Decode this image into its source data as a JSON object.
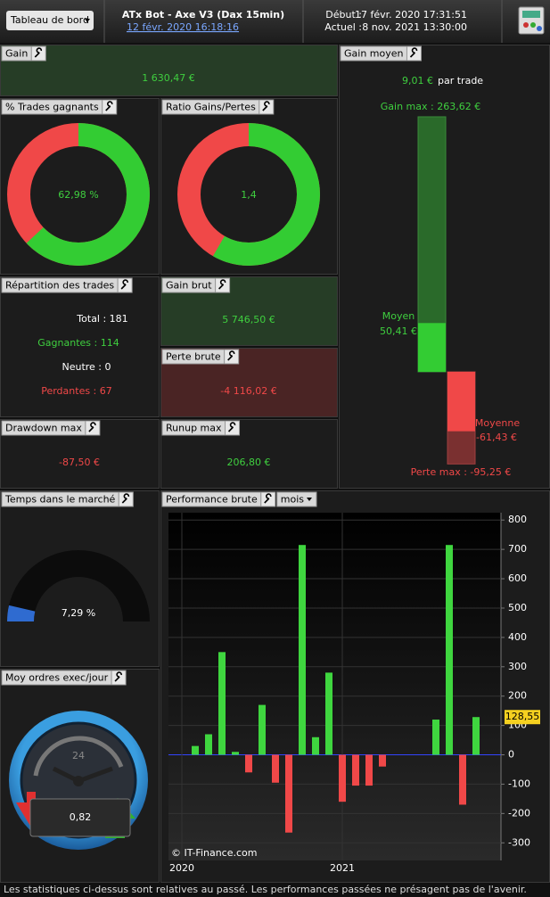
{
  "header": {
    "menu": "Tableau de bord",
    "title": "ATx Bot - Axe V3 (Dax 15min)",
    "date_link": "12 févr. 2020 16:18:16",
    "start_label": "Début :",
    "start": "17 févr. 2020 17:31:51",
    "current_label": "Actuel :",
    "current": "8 nov. 2021 13:30:00"
  },
  "gain": {
    "title": "Gain",
    "value": "1 630,47 €"
  },
  "win_rate": {
    "title": "% Trades gagnants",
    "value": 62.98,
    "label": "62,98 %"
  },
  "ratio": {
    "title": "Ratio Gains/Pertes",
    "value": 1.4,
    "label": "1,4"
  },
  "gain_moyen": {
    "title": "Gain moyen",
    "value": "9,01 €",
    "unit": "par trade",
    "gain_max": {
      "value": 263.62,
      "label": "Gain max : 263,62 €"
    },
    "moyen": {
      "name": "Moyen",
      "value": 50.41,
      "label": "50,41 €"
    },
    "moyenne": {
      "name": "Moyenne",
      "value": -61.43,
      "label": "-61,43 €"
    },
    "perte_max": {
      "value": -95.25,
      "label": "Perte max : -95,25 €"
    }
  },
  "repartition": {
    "title": "Répartition des trades",
    "lines": [
      "Total : 181",
      "Gagnantes : 114",
      "Neutre : 0",
      "Perdantes : 67"
    ]
  },
  "gain_brut": {
    "title": "Gain brut",
    "value": "5 746,50 €"
  },
  "perte_brute": {
    "title": "Perte brute",
    "value": "-4 116,02 €"
  },
  "drawdown": {
    "title": "Drawdown max",
    "value": "-87,50 €"
  },
  "runup": {
    "title": "Runup max",
    "value": "206,80 €"
  },
  "temps": {
    "title": "Temps dans le marché",
    "value": 7.29,
    "label": "7,29 %"
  },
  "ordres": {
    "title": "Moy ordres exec/jour",
    "clock": "24",
    "value": "0,82"
  },
  "chart_data": {
    "type": "bar",
    "title": "Performance brute",
    "period": "mois",
    "watermark": "© IT-Finance.com",
    "categories": [
      "2020",
      null,
      null,
      null,
      null,
      null,
      null,
      null,
      null,
      null,
      null,
      null,
      "2021",
      null,
      null,
      null,
      null,
      null,
      null,
      null,
      null,
      null,
      null
    ],
    "values": [
      null,
      30,
      70,
      350,
      10,
      -60,
      170,
      -95,
      -265,
      715,
      60,
      280,
      -160,
      -105,
      -105,
      -40,
      0,
      0,
      0,
      120,
      715,
      -170,
      128.55
    ],
    "value_labels": [
      null,
      null,
      null,
      null,
      null,
      null,
      null,
      null,
      null,
      null,
      null,
      null,
      null,
      null,
      null,
      null,
      null,
      null,
      null,
      null,
      null,
      null,
      "128,55"
    ],
    "positive_color": "#3fd63f",
    "negative_color": "#f04848",
    "ylim": [
      -360,
      825
    ],
    "yticks": [
      -300,
      -200,
      -100,
      0,
      100,
      200,
      300,
      400,
      500,
      600,
      700,
      800
    ],
    "grid": true
  },
  "footer": "Les statistiques ci-dessus sont relatives au passé. Les performances passées ne présagent pas de l'avenir."
}
